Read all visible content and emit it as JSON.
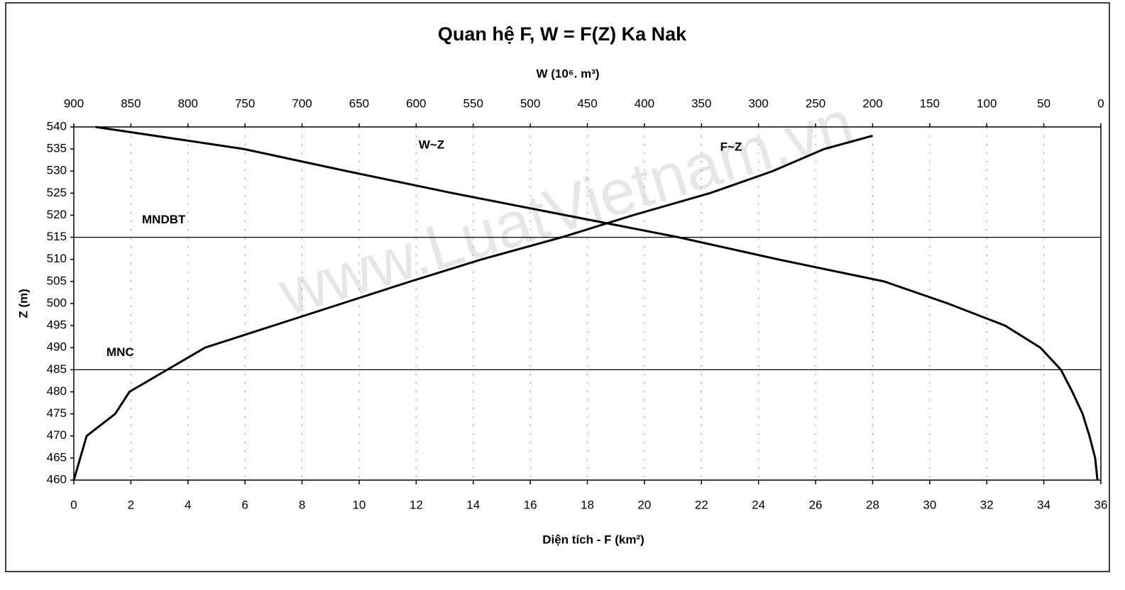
{
  "chart_data": {
    "type": "line",
    "title": "Quan hệ F, W = F(Z) Ka Nak",
    "watermark": "www.LuatVietnam.vn",
    "x_label": "Diện tích - F (km²)",
    "x2_label": "W (10⁶. m³)",
    "y_label": "Z (m)",
    "xlim": [
      0,
      36
    ],
    "xticks": [
      0,
      2,
      4,
      6,
      8,
      10,
      12,
      14,
      16,
      18,
      20,
      22,
      24,
      26,
      28,
      30,
      32,
      34,
      36
    ],
    "x2lim": [
      900,
      0
    ],
    "x2ticks": [
      900,
      850,
      800,
      750,
      700,
      650,
      600,
      550,
      500,
      450,
      400,
      350,
      300,
      250,
      200,
      150,
      100,
      50,
      0
    ],
    "ylim": [
      460,
      540
    ],
    "yticks": [
      460,
      465,
      470,
      475,
      480,
      485,
      490,
      495,
      500,
      505,
      510,
      515,
      520,
      525,
      530,
      535,
      540
    ],
    "grid": true,
    "color": "#000000",
    "series": [
      {
        "name": "F~Z",
        "axis": "x",
        "x": [
          0,
          0.45,
          1.45,
          1.95,
          4.6,
          7,
          9.4,
          11.8,
          14.3,
          17.1,
          19.6,
          22.3,
          24.5,
          26.3,
          28
        ],
        "y": [
          460,
          470,
          475,
          480,
          490,
          495,
          500,
          505,
          510,
          515,
          520,
          525,
          530,
          535,
          538
        ]
      },
      {
        "name": "W~Z",
        "axis": "x2",
        "x": [
          3,
          5,
          10,
          16,
          25,
          35,
          53,
          84,
          134,
          190,
          283,
          370,
          469,
          568,
          661,
          751,
          881
        ],
        "y": [
          460,
          465,
          470,
          475,
          480,
          485,
          490,
          495,
          500,
          505,
          510,
          515,
          520,
          525,
          530,
          535,
          540
        ]
      }
    ],
    "reference_lines": [
      {
        "label": "MNDBT",
        "value": 515
      },
      {
        "label": "MNC",
        "value": 485
      }
    ]
  }
}
